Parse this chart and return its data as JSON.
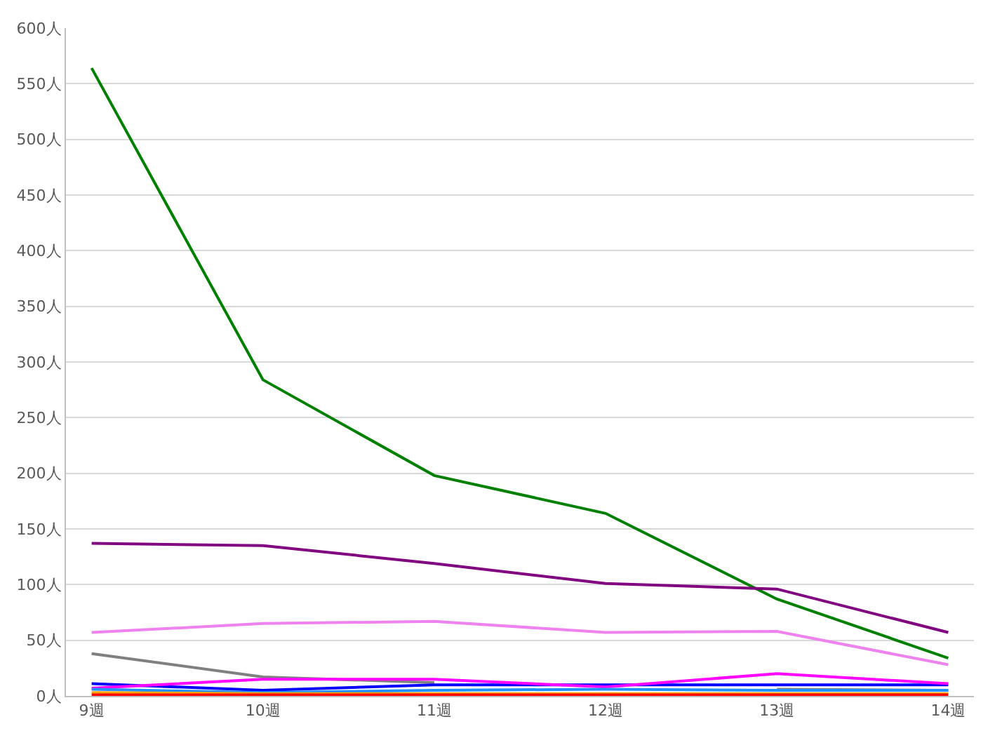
{
  "chart_data": {
    "type": "line",
    "categories": [
      "9週",
      "10週",
      "11週",
      "12週",
      "13週",
      "14週"
    ],
    "series": [
      {
        "color": "#008000",
        "values": [
          564,
          284,
          198,
          164,
          87,
          34
        ]
      },
      {
        "color": "#800080",
        "values": [
          137,
          135,
          119,
          101,
          96,
          57
        ]
      },
      {
        "color": "#ee82ee",
        "values": [
          57,
          65,
          67,
          57,
          58,
          28
        ]
      },
      {
        "color": "#808080",
        "values": [
          38,
          17,
          12,
          null,
          6,
          5
        ]
      },
      {
        "color": "#0000ff",
        "values": [
          11,
          5,
          10,
          10,
          10,
          10
        ]
      },
      {
        "color": "#ff00ff",
        "values": [
          7,
          15,
          15,
          8,
          20,
          11
        ]
      },
      {
        "color": "#1e90ff",
        "values": [
          6,
          3,
          5,
          6,
          5,
          5
        ]
      },
      {
        "color": "#ffa500",
        "values": [
          3,
          2,
          2,
          2,
          2,
          2
        ]
      },
      {
        "color": "#ff0000",
        "values": [
          1,
          1,
          1,
          1,
          1,
          1
        ]
      }
    ],
    "ylim": [
      0,
      600
    ],
    "yticks": [
      {
        "value": 0,
        "label": "0人"
      },
      {
        "value": 50,
        "label": "50人"
      },
      {
        "value": 100,
        "label": "100人"
      },
      {
        "value": 150,
        "label": "150人"
      },
      {
        "value": 200,
        "label": "200人"
      },
      {
        "value": 250,
        "label": "250人"
      },
      {
        "value": 300,
        "label": "300人"
      },
      {
        "value": 350,
        "label": "350人"
      },
      {
        "value": 400,
        "label": "400人"
      },
      {
        "value": 450,
        "label": "450人"
      },
      {
        "value": 500,
        "label": "500人"
      },
      {
        "value": 550,
        "label": "550人"
      },
      {
        "value": 600,
        "label": "600人"
      }
    ],
    "grid": "y",
    "marker": "none",
    "line_style": "solid"
  }
}
